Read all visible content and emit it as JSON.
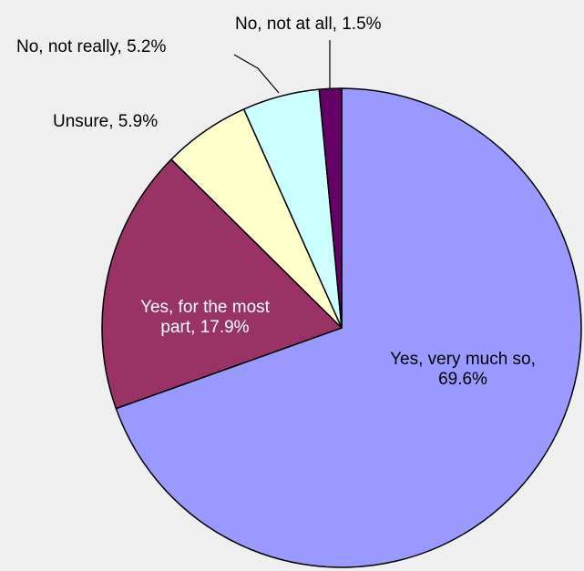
{
  "chart_data": {
    "type": "pie",
    "title": "",
    "start_angle_deg": 0,
    "direction": "clockwise",
    "slices": [
      {
        "label": "Yes, very much so, 69.6%",
        "name": "Yes, very much so",
        "value": 69.6,
        "color": "#9999ff"
      },
      {
        "label": "Yes, for the most part, 17.9%",
        "name": "Yes, for the most part",
        "value": 17.9,
        "color": "#993366"
      },
      {
        "label": "Unsure, 5.9%",
        "name": "Unsure",
        "value": 5.9,
        "color": "#ffffcc"
      },
      {
        "label": "No, not really, 5.2%",
        "name": "No, not really",
        "value": 5.2,
        "color": "#ccffff"
      },
      {
        "label": "No, not at all, 1.5%",
        "name": "No, not at all",
        "value": 1.5,
        "color": "#660066"
      }
    ],
    "legend": "none"
  }
}
